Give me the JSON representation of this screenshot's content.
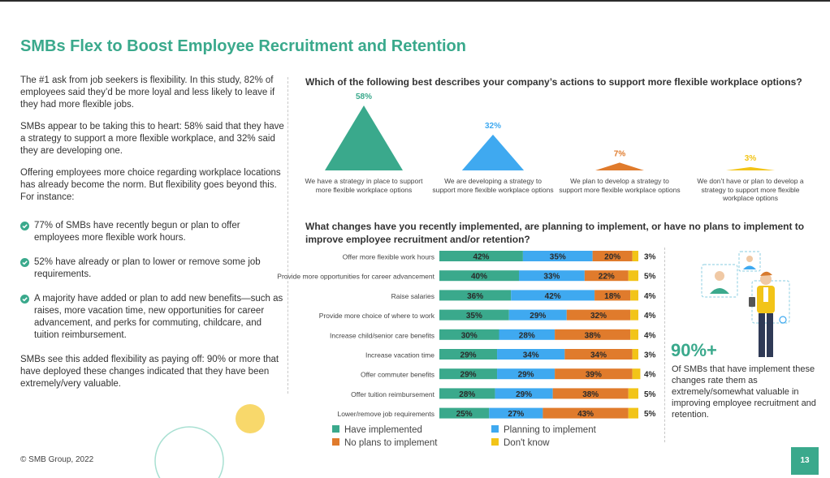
{
  "page": {
    "title": "SMBs Flex to Boost Employee Recruitment and Retention",
    "copyright": "© SMB Group, 2022",
    "page_number": "13"
  },
  "left": {
    "paragraphs": [
      "The #1 ask from job seekers is flexibility. In this study, 82% of employees said they’d be more loyal and less likely to leave if they had more flexible jobs.",
      "SMBs appear to be taking this to heart: 58% said that they have a strategy to support a more flexible workplace, and 32% said they are developing one.",
      "Offering employees more choice regarding workplace locations has already become the norm. But flexibility goes beyond this. For instance:"
    ],
    "bullets": [
      "77% of SMBs have recently begun or plan to offer employees more flexible work hours.",
      "52% have already or plan to lower or remove some job requirements.",
      "A majority have added or plan to add new benefits—such as raises, more vacation time, new opportunities for career advancement, and perks for commuting, childcare, and tuition reimbursement."
    ],
    "closing": "SMBs see this added flexibility as paying off: 90% or more that have deployed these changes indicated that they have been extremely/very valuable."
  },
  "stat": {
    "big": "90%+",
    "text": "Of SMBs that have implement these changes rate them as extremely/somewhat valuable in improving employee recruitment and retention."
  },
  "colors": {
    "teal": "#3aa98c",
    "blue": "#3fa9f0",
    "orange": "#e07b2c",
    "yellow": "#f2c418"
  },
  "chart_data": [
    {
      "type": "triangle-pictograph",
      "title": "Which of the following best describes your company’s actions to support more flexible workplace options?",
      "categories": [
        "We have a strategy in place to support more flexible workplace options",
        "We are developing a strategy to support more flexible workplace options",
        "We plan to develop a strategy to support more flexible workplace options",
        "We don’t have or plan to develop a strategy to support more flexible workplace options"
      ],
      "values": [
        58,
        32,
        7,
        3
      ],
      "labels": [
        "58%",
        "32%",
        "7%",
        "3%"
      ],
      "colors": [
        "#3aa98c",
        "#3fa9f0",
        "#e07b2c",
        "#f2c418"
      ]
    },
    {
      "type": "bar",
      "orientation": "horizontal",
      "stacked": true,
      "title": "What changes have you recently implemented, are planning to implement, or have no plans to implement to improve employee recruitment and/or retention?",
      "categories": [
        "Offer more flexible work hours",
        "Provide more opportunities for career advancement",
        "Raise salaries",
        "Provide more choice of where to work",
        "Increase child/senior care benefits",
        "Increase vacation time",
        "Offer commuter benefits",
        "Offer tuition reimbursement",
        "Lower/remove job requirements"
      ],
      "series": [
        {
          "name": "Have implemented",
          "color": "#3aa98c",
          "values": [
            42,
            40,
            36,
            35,
            30,
            29,
            29,
            28,
            25
          ]
        },
        {
          "name": "Planning to implement",
          "color": "#3fa9f0",
          "values": [
            35,
            33,
            42,
            29,
            28,
            34,
            29,
            29,
            27
          ]
        },
        {
          "name": "No plans to implement",
          "color": "#e07b2c",
          "values": [
            20,
            22,
            18,
            32,
            38,
            34,
            39,
            38,
            43
          ]
        },
        {
          "name": "Don't know",
          "color": "#f2c418",
          "values": [
            3,
            5,
            4,
            4,
            4,
            3,
            4,
            5,
            5
          ]
        }
      ],
      "xlim": [
        0,
        100
      ]
    }
  ]
}
